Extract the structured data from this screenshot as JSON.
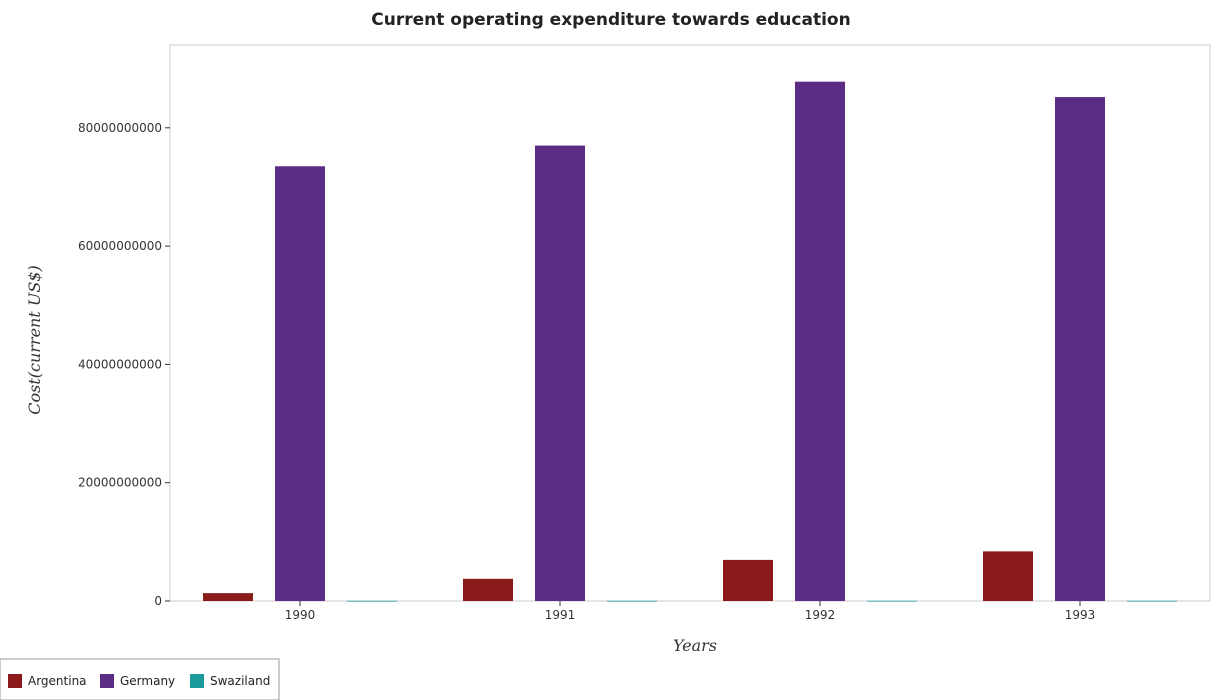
{
  "chart_data": {
    "type": "bar",
    "title": "Current operating expenditure towards education",
    "xlabel": "Years",
    "ylabel": "Cost(current US$)",
    "categories": [
      "1990",
      "1991",
      "1992",
      "1993"
    ],
    "series": [
      {
        "name": "Argentina",
        "color": "#8b1a1a",
        "values": [
          1330000000,
          3750000000,
          6950000000,
          8390000000
        ]
      },
      {
        "name": "Germany",
        "color": "#5b2c86",
        "values": [
          73500000000,
          77000000000,
          87800000000,
          85200000000
        ]
      },
      {
        "name": "Swaziland",
        "color": "#1a9a9a",
        "values": [
          30000000,
          35000000,
          40000000,
          40000000
        ]
      }
    ],
    "yticks": [
      0,
      20000000000,
      40000000000,
      60000000000,
      80000000000
    ],
    "ytick_labels": [
      "0",
      "20000000000",
      "40000000000",
      "60000000000",
      "80000000000"
    ],
    "ylim": [
      0,
      94000000000
    ],
    "grid": false,
    "legend_position": "bottom-left"
  }
}
